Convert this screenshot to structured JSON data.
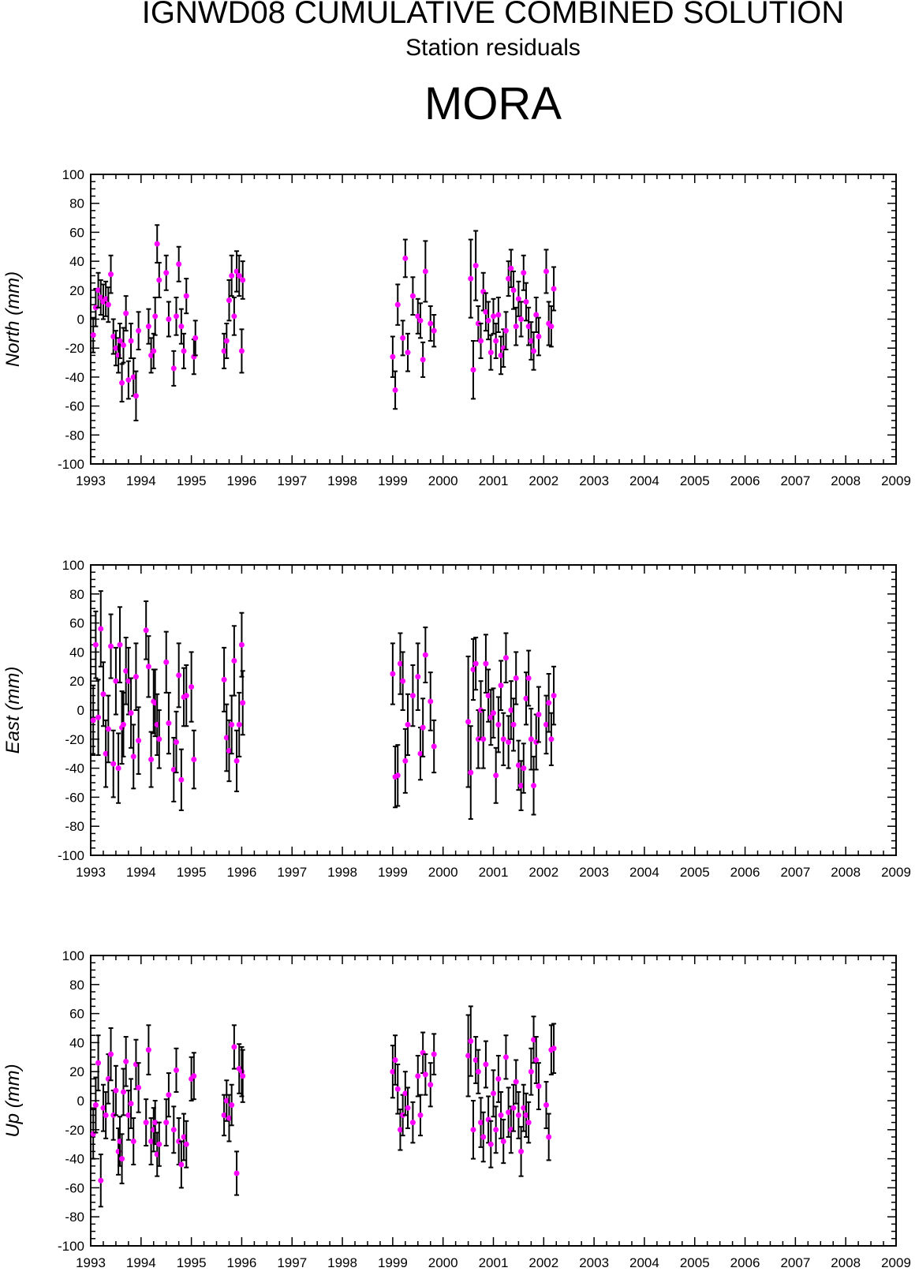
{
  "header": {
    "title": "IGNWD08 CUMULATIVE COMBINED SOLUTION",
    "subtitle": "Station residuals",
    "station": "MORA"
  },
  "colors": {
    "point": "#ff00ff",
    "errorbar": "#000000",
    "axis": "#000000"
  },
  "chart_data": [
    {
      "type": "scatter",
      "ylabel": "North (mm)",
      "xlim": [
        1993,
        2009
      ],
      "ylim": [
        -100,
        100
      ],
      "x_ticks": [
        "1993",
        "1994",
        "1995",
        "1996",
        "1997",
        "1998",
        "1999",
        "2000",
        "2001",
        "2002",
        "2003",
        "2004",
        "2005",
        "2006",
        "2007",
        "2008",
        "2009"
      ],
      "y_ticks": [
        "100",
        "80",
        "60",
        "40",
        "20",
        "0",
        "-20",
        "-40",
        "-60",
        "-80",
        "-100"
      ],
      "series": [
        {
          "x": [
            1993.05,
            1993.1,
            1993.15,
            1993.2,
            1993.25,
            1993.3,
            1993.35,
            1993.4,
            1993.45,
            1993.5,
            1993.55,
            1993.58,
            1993.62,
            1993.65,
            1993.7,
            1993.75,
            1993.8,
            1993.85,
            1993.9,
            1993.95,
            1994.15,
            1994.2,
            1994.25,
            1994.28,
            1994.32,
            1994.36,
            1994.5,
            1994.55,
            1994.65,
            1994.7,
            1994.75,
            1994.8,
            1994.85,
            1994.9,
            1995.05,
            1995.08,
            1995.65,
            1995.7,
            1995.75,
            1995.8,
            1995.85,
            1995.9,
            1995.95,
            1996.0,
            1996.02,
            1999.0,
            1999.05,
            1999.1,
            1999.2,
            1999.25,
            1999.3,
            1999.4,
            1999.5,
            1999.55,
            1999.6,
            1999.65,
            1999.75,
            1999.82,
            2000.55,
            2000.6,
            2000.65,
            2000.7,
            2000.75,
            2000.8,
            2000.85,
            2000.9,
            2000.95,
            2001.0,
            2001.05,
            2001.1,
            2001.15,
            2001.2,
            2001.25,
            2001.3,
            2001.35,
            2001.4,
            2001.45,
            2001.5,
            2001.55,
            2001.6,
            2001.65,
            2001.7,
            2001.75,
            2001.8,
            2001.85,
            2001.9,
            2002.05,
            2002.1,
            2002.15,
            2002.2
          ],
          "y": [
            -11,
            8,
            20,
            15,
            12,
            14,
            10,
            31,
            -12,
            -20,
            -25,
            -15,
            -44,
            -18,
            4,
            -42,
            -15,
            -40,
            -53,
            -8,
            -5,
            -25,
            -22,
            2,
            52,
            27,
            32,
            0,
            -34,
            2,
            38,
            -5,
            -22,
            16,
            -26,
            -13,
            -22,
            -15,
            13,
            30,
            2,
            33,
            30,
            -22,
            27,
            -26,
            -49,
            10,
            -13,
            42,
            -23,
            16,
            2,
            -1,
            -28,
            33,
            -3,
            -8,
            28,
            -35,
            37,
            -3,
            -15,
            19,
            5,
            -1,
            -23,
            2,
            -15,
            3,
            -25,
            -20,
            -8,
            28,
            35,
            20,
            -5,
            14,
            0,
            32,
            12,
            -5,
            -15,
            -22,
            3,
            -12,
            33,
            -3,
            -5,
            21
          ],
          "err": [
            12,
            13,
            12,
            12,
            12,
            12,
            12,
            13,
            12,
            12,
            12,
            12,
            13,
            12,
            12,
            13,
            12,
            13,
            17,
            13,
            12,
            12,
            12,
            13,
            13,
            12,
            12,
            12,
            12,
            13,
            12,
            12,
            12,
            12,
            12,
            12,
            12,
            12,
            14,
            14,
            13,
            14,
            14,
            15,
            13,
            14,
            13,
            14,
            12,
            13,
            13,
            13,
            12,
            12,
            12,
            21,
            12,
            11,
            27,
            20,
            24,
            12,
            12,
            13,
            13,
            13,
            12,
            12,
            12,
            12,
            13,
            13,
            13,
            12,
            13,
            13,
            13,
            12,
            12,
            12,
            13,
            13,
            13,
            13,
            12,
            13,
            15,
            15,
            14,
            15
          ]
        }
      ]
    },
    {
      "type": "scatter",
      "ylabel": "East (mm)",
      "xlim": [
        1993,
        2009
      ],
      "ylim": [
        -100,
        100
      ],
      "x_ticks": [
        "1993",
        "1994",
        "1995",
        "1996",
        "1997",
        "1998",
        "1999",
        "2000",
        "2001",
        "2002",
        "2003",
        "2004",
        "2005",
        "2006",
        "2007",
        "2008",
        "2009"
      ],
      "y_ticks": [
        "100",
        "80",
        "60",
        "40",
        "20",
        "0",
        "-20",
        "-40",
        "-60",
        "-80",
        "-100"
      ],
      "series": [
        {
          "x": [
            1993.05,
            1993.1,
            1993.15,
            1993.2,
            1993.25,
            1993.3,
            1993.35,
            1993.4,
            1993.45,
            1993.5,
            1993.55,
            1993.58,
            1993.62,
            1993.65,
            1993.7,
            1993.75,
            1993.8,
            1993.85,
            1993.9,
            1993.95,
            1994.1,
            1994.15,
            1994.2,
            1994.25,
            1994.28,
            1994.32,
            1994.36,
            1994.5,
            1994.55,
            1994.65,
            1994.7,
            1994.75,
            1994.8,
            1994.85,
            1994.9,
            1995.0,
            1995.05,
            1995.65,
            1995.7,
            1995.75,
            1995.8,
            1995.85,
            1995.9,
            1995.95,
            1996.0,
            1996.02,
            1999.0,
            1999.05,
            1999.1,
            1999.15,
            1999.2,
            1999.25,
            1999.3,
            1999.4,
            1999.5,
            1999.55,
            1999.6,
            1999.65,
            1999.75,
            1999.82,
            2000.5,
            2000.55,
            2000.6,
            2000.65,
            2000.7,
            2000.75,
            2000.8,
            2000.85,
            2000.9,
            2000.95,
            2001.0,
            2001.05,
            2001.1,
            2001.15,
            2001.2,
            2001.25,
            2001.3,
            2001.35,
            2001.4,
            2001.45,
            2001.5,
            2001.55,
            2001.6,
            2001.65,
            2001.7,
            2001.75,
            2001.8,
            2001.85,
            2001.9,
            2002.05,
            2002.1,
            2002.15,
            2002.2
          ],
          "y": [
            -7,
            45,
            -5,
            56,
            11,
            -30,
            -13,
            44,
            -37,
            20,
            -40,
            45,
            -12,
            -10,
            27,
            20,
            -2,
            -32,
            23,
            -21,
            55,
            30,
            -34,
            6,
            5,
            -10,
            -20,
            33,
            -9,
            -41,
            -22,
            24,
            -48,
            9,
            10,
            16,
            -34,
            21,
            -19,
            -28,
            -10,
            34,
            -35,
            -10,
            45,
            5,
            25,
            -46,
            -45,
            32,
            20,
            -35,
            -10,
            10,
            23,
            -30,
            -12,
            38,
            6,
            -25,
            -8,
            -43,
            28,
            32,
            -20,
            0,
            -20,
            32,
            10,
            -5,
            -2,
            -45,
            -10,
            17,
            -20,
            36,
            -22,
            0,
            -10,
            22,
            -38,
            -52,
            -40,
            8,
            22,
            -20,
            -52,
            -22,
            -3,
            -10,
            5,
            -20,
            10
          ],
          "err": [
            24,
            23,
            26,
            26,
            22,
            23,
            23,
            22,
            23,
            23,
            24,
            26,
            25,
            22,
            23,
            23,
            24,
            22,
            23,
            23,
            20,
            21,
            19,
            22,
            23,
            21,
            20,
            21,
            21,
            22,
            21,
            22,
            21,
            20,
            21,
            24,
            20,
            22,
            23,
            21,
            20,
            24,
            21,
            22,
            22,
            22,
            21,
            21,
            21,
            21,
            20,
            22,
            21,
            21,
            23,
            18,
            20,
            19,
            20,
            18,
            45,
            32,
            21,
            18,
            20,
            20,
            20,
            20,
            18,
            19,
            17,
            19,
            19,
            17,
            18,
            17,
            18,
            20,
            18,
            18,
            17,
            17,
            17,
            18,
            19,
            21,
            20,
            19,
            19,
            20,
            20,
            18,
            20
          ]
        }
      ]
    },
    {
      "type": "scatter",
      "ylabel": "Up (mm)",
      "xlim": [
        1993,
        2009
      ],
      "ylim": [
        -100,
        100
      ],
      "x_ticks": [
        "1993",
        "1994",
        "1995",
        "1996",
        "1997",
        "1998",
        "1999",
        "2000",
        "2001",
        "2002",
        "2003",
        "2004",
        "2005",
        "2006",
        "2007",
        "2008",
        "2009"
      ],
      "y_ticks": [
        "100",
        "80",
        "60",
        "40",
        "20",
        "0",
        "-20",
        "-40",
        "-60",
        "-80",
        "-100"
      ],
      "series": [
        {
          "x": [
            1993.05,
            1993.1,
            1993.15,
            1993.2,
            1993.25,
            1993.3,
            1993.35,
            1993.4,
            1993.45,
            1993.5,
            1993.55,
            1993.58,
            1993.62,
            1993.65,
            1993.7,
            1993.75,
            1993.8,
            1993.85,
            1993.9,
            1993.95,
            1994.1,
            1994.15,
            1994.2,
            1994.25,
            1994.28,
            1994.32,
            1994.36,
            1994.5,
            1994.55,
            1994.65,
            1994.7,
            1994.75,
            1994.8,
            1994.85,
            1994.9,
            1995.0,
            1995.05,
            1995.65,
            1995.7,
            1995.75,
            1995.8,
            1995.85,
            1995.9,
            1995.95,
            1996.0,
            1996.02,
            1999.0,
            1999.05,
            1999.1,
            1999.15,
            1999.2,
            1999.25,
            1999.3,
            1999.4,
            1999.5,
            1999.55,
            1999.6,
            1999.65,
            1999.75,
            1999.82,
            2000.5,
            2000.55,
            2000.6,
            2000.65,
            2000.7,
            2000.75,
            2000.8,
            2000.85,
            2000.9,
            2000.95,
            2001.0,
            2001.05,
            2001.1,
            2001.15,
            2001.2,
            2001.25,
            2001.3,
            2001.35,
            2001.4,
            2001.45,
            2001.5,
            2001.55,
            2001.6,
            2001.65,
            2001.7,
            2001.75,
            2001.8,
            2001.85,
            2001.9,
            2002.05,
            2002.1,
            2002.15,
            2002.2
          ],
          "y": [
            -23,
            -3,
            26,
            -55,
            -5,
            -10,
            15,
            32,
            -10,
            7,
            -35,
            -28,
            -40,
            6,
            27,
            -10,
            -2,
            -28,
            25,
            9,
            -15,
            35,
            -28,
            -20,
            -15,
            -37,
            -30,
            -15,
            4,
            -20,
            21,
            -28,
            -44,
            -25,
            -30,
            15,
            17,
            -10,
            0,
            -12,
            -3,
            37,
            -50,
            22,
            20,
            17,
            20,
            28,
            8,
            -20,
            -10,
            5,
            -5,
            -15,
            17,
            -10,
            33,
            18,
            11,
            32,
            31,
            41,
            -20,
            28,
            20,
            -15,
            -25,
            25,
            -13,
            -30,
            5,
            -20,
            15,
            -10,
            -28,
            30,
            -8,
            -20,
            -5,
            13,
            -10,
            -35,
            -5,
            -10,
            -15,
            20,
            42,
            28,
            10,
            -3,
            -25,
            35,
            36
          ],
          "err": [
            17,
            19,
            19,
            18,
            16,
            16,
            17,
            18,
            17,
            17,
            16,
            17,
            17,
            16,
            17,
            17,
            17,
            16,
            17,
            17,
            16,
            17,
            16,
            15,
            15,
            15,
            15,
            16,
            15,
            16,
            15,
            16,
            16,
            16,
            16,
            15,
            16,
            14,
            14,
            16,
            14,
            15,
            15,
            17,
            17,
            18,
            18,
            17,
            17,
            14,
            14,
            15,
            14,
            14,
            14,
            14,
            14,
            14,
            15,
            14,
            28,
            24,
            20,
            16,
            15,
            17,
            17,
            16,
            16,
            16,
            16,
            16,
            16,
            16,
            15,
            15,
            17,
            16,
            16,
            15,
            16,
            17,
            16,
            15,
            14,
            16,
            16,
            16,
            16,
            16,
            16,
            17,
            17
          ]
        }
      ]
    }
  ]
}
